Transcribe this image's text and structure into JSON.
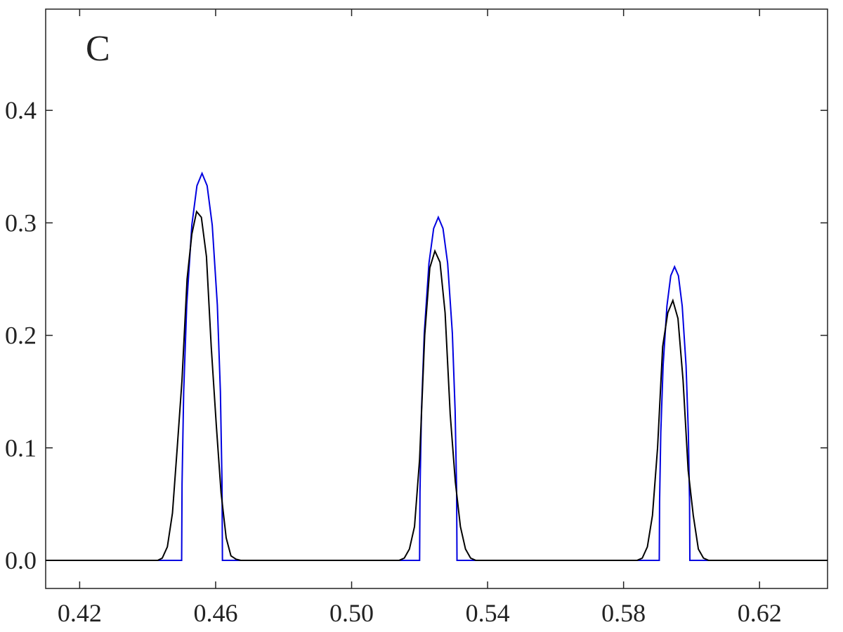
{
  "chart_data": {
    "type": "line",
    "annotation": "C",
    "xlim": [
      0.41,
      0.64
    ],
    "ylim": [
      -0.025,
      0.49
    ],
    "xticks": [
      0.42,
      0.46,
      {
        "value": 0.5,
        "label": "0.50"
      },
      0.54,
      0.58,
      0.62
    ],
    "yticks": [
      {
        "value": 0,
        "label": "0.0"
      },
      0.1,
      0.2,
      0.3,
      0.4
    ],
    "series": [
      {
        "color": "#0000e0",
        "x": [
          0.41,
          0.45,
          0.45012,
          0.4506,
          0.4515,
          0.453,
          0.4545,
          0.456,
          0.4575,
          0.459,
          0.4605,
          0.4614,
          0.46188,
          0.462,
          0.52,
          0.52011,
          0.52055,
          0.52138,
          0.52275,
          0.52413,
          0.5255,
          0.52688,
          0.52825,
          0.52963,
          0.53045,
          0.53089,
          0.531,
          0.5905,
          0.59059,
          0.59095,
          0.59163,
          0.59275,
          0.59388,
          0.595,
          0.59613,
          0.59725,
          0.59838,
          0.59905,
          0.59941,
          0.5995,
          0.64
        ],
        "values": [
          0,
          0,
          0.068,
          0.15,
          0.227,
          0.298,
          0.333,
          0.344,
          0.333,
          0.298,
          0.227,
          0.15,
          0.068,
          0,
          0,
          0.061,
          0.133,
          0.202,
          0.264,
          0.295,
          0.305,
          0.295,
          0.264,
          0.202,
          0.133,
          0.061,
          0,
          0,
          0.052,
          0.114,
          0.173,
          0.226,
          0.253,
          0.261,
          0.253,
          0.226,
          0.173,
          0.114,
          0.052,
          0,
          0
        ]
      },
      {
        "color": "#000000",
        "x": [
          0.41,
          0.443,
          0.4443,
          0.4458,
          0.4473,
          0.4487,
          0.4501,
          0.4516,
          0.453,
          0.4544,
          0.4558,
          0.4573,
          0.4587,
          0.4602,
          0.4616,
          0.4631,
          0.4645,
          0.466,
          0.4674,
          0.514,
          0.5155,
          0.517,
          0.5185,
          0.52,
          0.5215,
          0.523,
          0.5245,
          0.526,
          0.5275,
          0.529,
          0.5305,
          0.532,
          0.5335,
          0.535,
          0.5365,
          0.584,
          0.5855,
          0.587,
          0.5885,
          0.59,
          0.5915,
          0.593,
          0.5945,
          0.596,
          0.5975,
          0.599,
          0.6005,
          0.602,
          0.6035,
          0.605,
          0.64
        ],
        "values": [
          0,
          0,
          0.002,
          0.012,
          0.042,
          0.1,
          0.16,
          0.25,
          0.29,
          0.31,
          0.305,
          0.27,
          0.19,
          0.12,
          0.06,
          0.02,
          0.004,
          0.001,
          0,
          0,
          0.002,
          0.01,
          0.03,
          0.09,
          0.2,
          0.26,
          0.275,
          0.265,
          0.22,
          0.13,
          0.07,
          0.03,
          0.01,
          0.002,
          0,
          0,
          0.002,
          0.012,
          0.04,
          0.1,
          0.19,
          0.22,
          0.231,
          0.215,
          0.16,
          0.08,
          0.04,
          0.01,
          0.002,
          0,
          0
        ]
      }
    ]
  }
}
